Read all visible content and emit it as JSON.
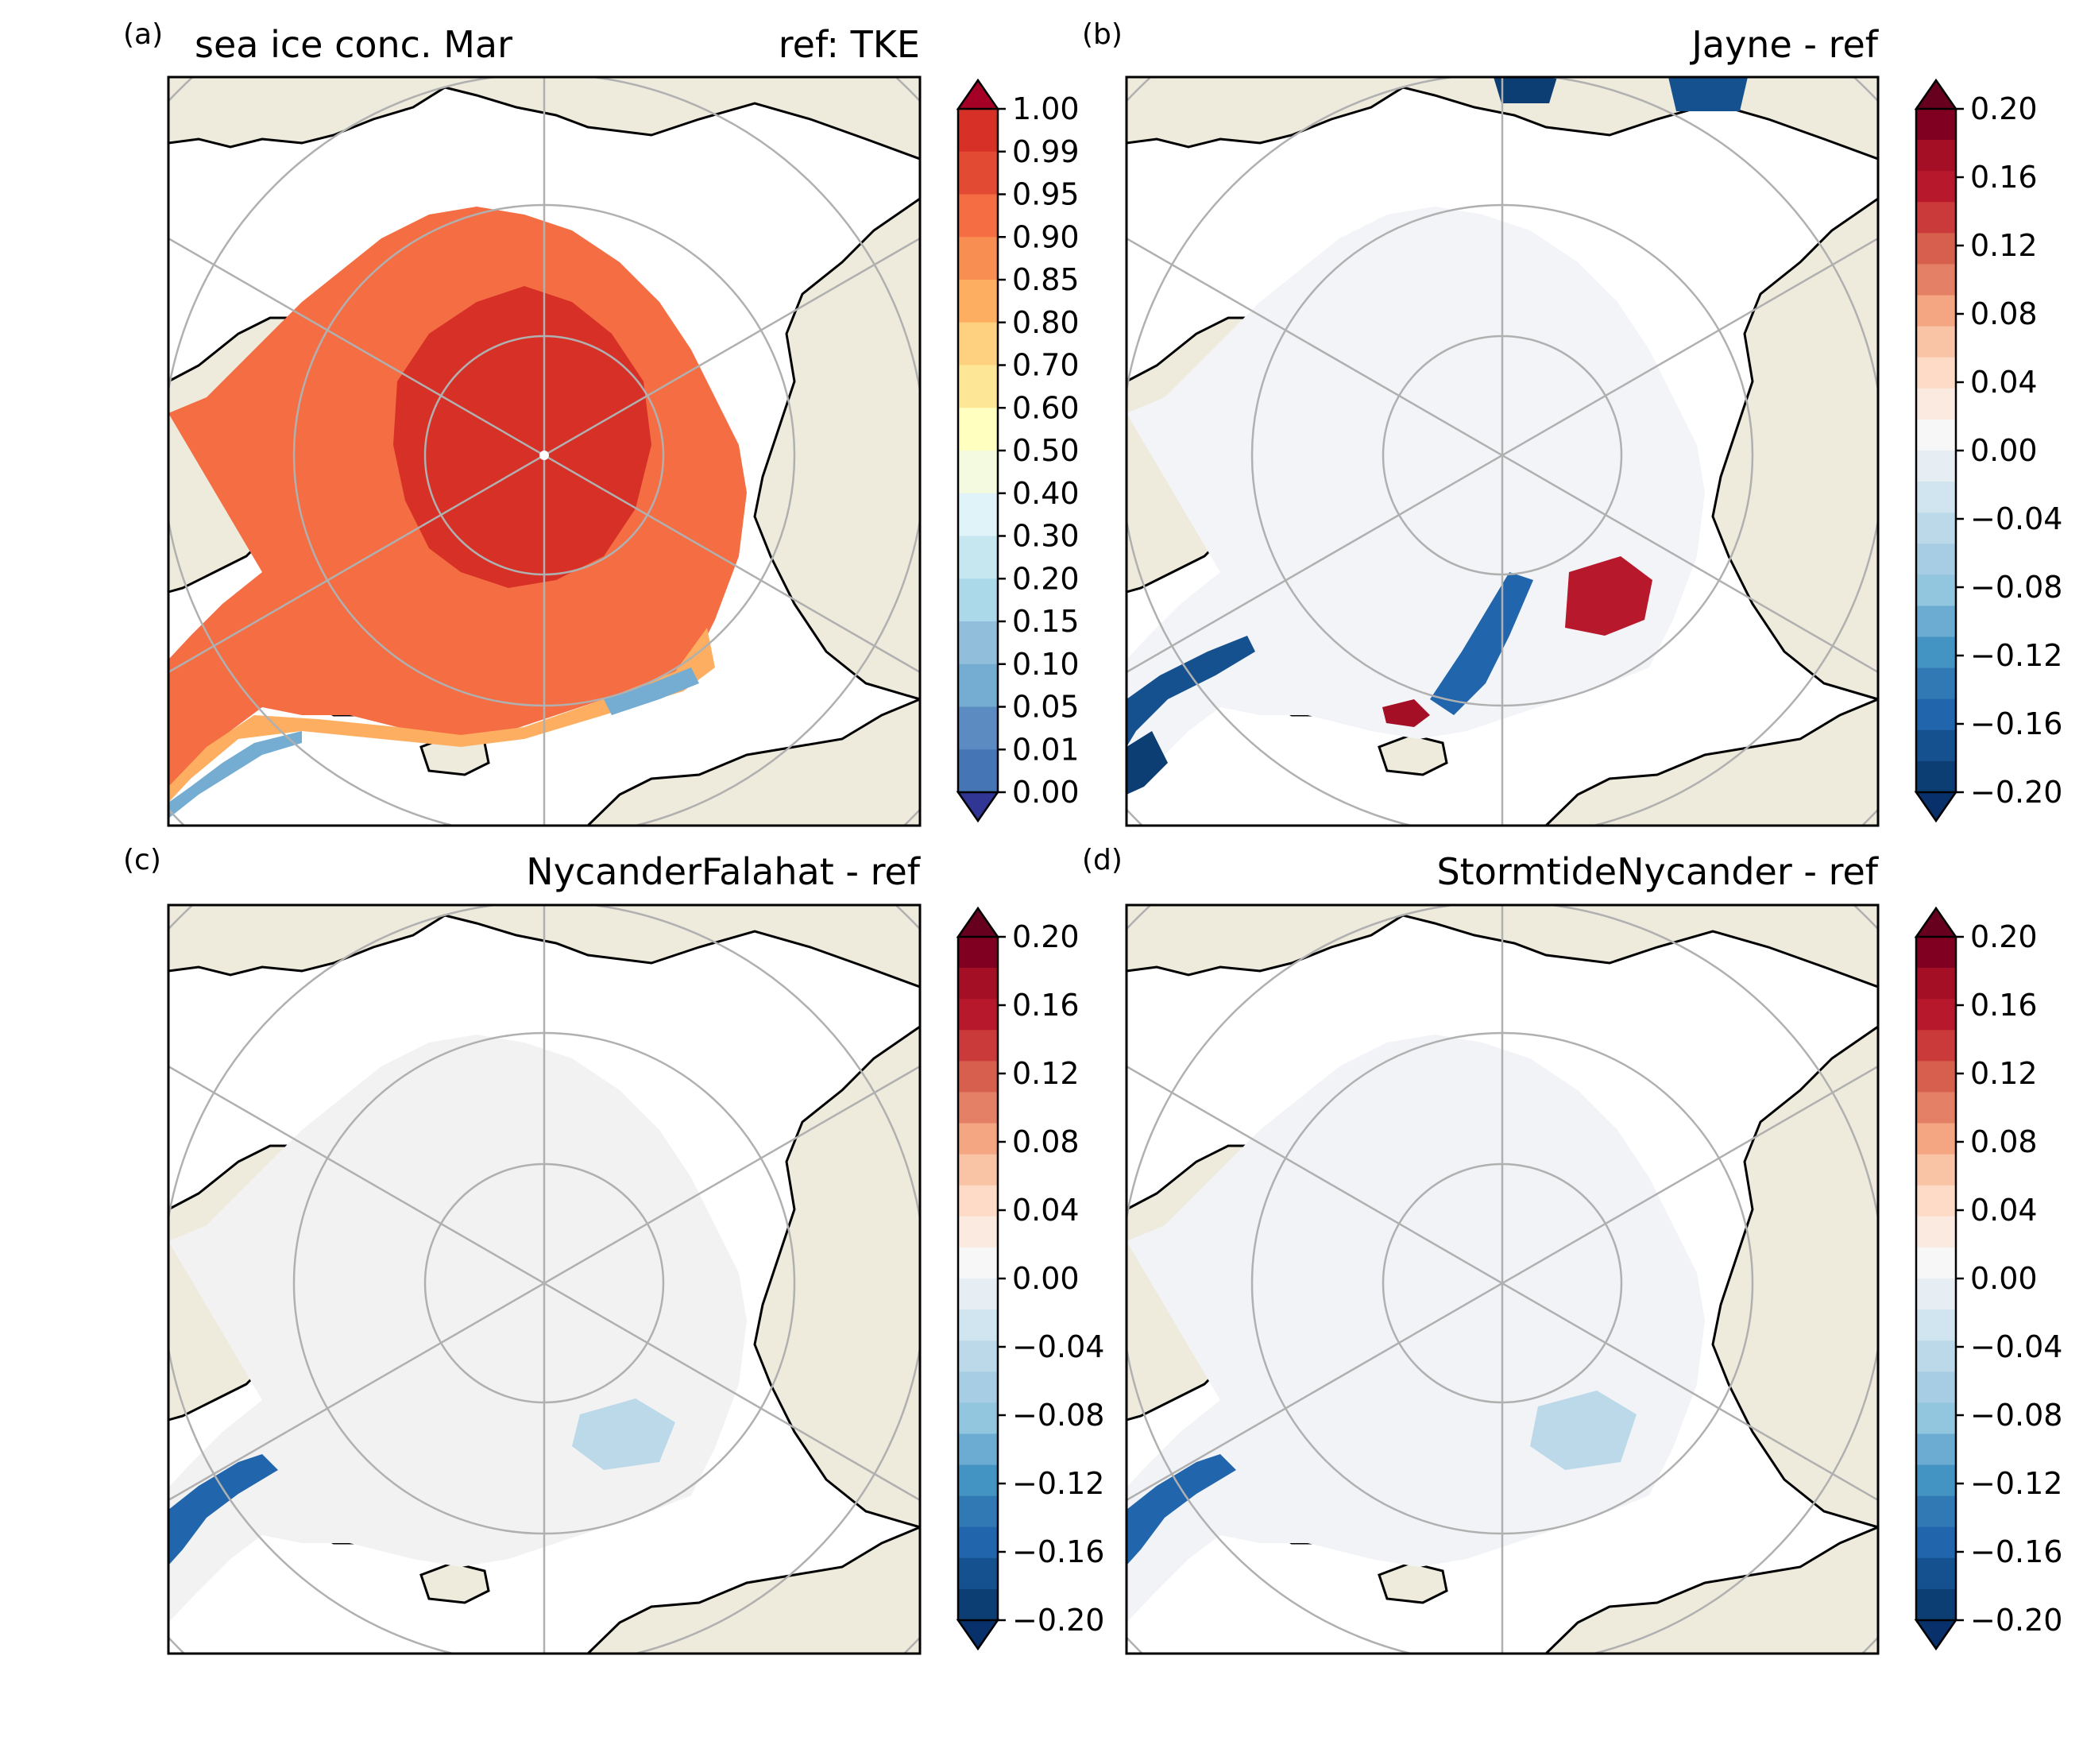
{
  "colors": {
    "land": "#eeeadc",
    "ocean_background": "#ffffff",
    "coastline": "#000000",
    "gridline": "#b0b0b0"
  },
  "colorbars": {
    "concentration": {
      "ticks": [
        "0.00",
        "0.01",
        "0.05",
        "0.10",
        "0.15",
        "0.20",
        "0.30",
        "0.40",
        "0.50",
        "0.60",
        "0.70",
        "0.80",
        "0.85",
        "0.90",
        "0.95",
        "0.99",
        "1.00"
      ],
      "under_color": "#313695",
      "over_color": "#a50026",
      "band_colors": [
        "#4575b4",
        "#5b8bc0",
        "#74add1",
        "#91bfdb",
        "#abd9e9",
        "#c7e7f0",
        "#e0f3f8",
        "#f3fadf",
        "#ffffbf",
        "#fee697",
        "#fdd17f",
        "#fdae61",
        "#f98e52",
        "#f46d43",
        "#e34a33",
        "#d73027"
      ]
    },
    "difference": {
      "ticks": [
        "0.20",
        "0.16",
        "0.12",
        "0.08",
        "0.04",
        "0.00",
        "−0.04",
        "−0.08",
        "−0.12",
        "−0.16",
        "−0.20"
      ],
      "under_color": "#08306b",
      "over_color": "#67001f",
      "band_colors_top_to_bottom": [
        "#7f0020",
        "#a50f26",
        "#b8182b",
        "#cb3a3a",
        "#d6604d",
        "#e48066",
        "#f4a582",
        "#f9c3a6",
        "#fddbc7",
        "#fbeae0",
        "#f7f7f7",
        "#e6eef4",
        "#d1e5f0",
        "#bcd9ea",
        "#a6cde3",
        "#92c5de",
        "#6cabd2",
        "#4393c3",
        "#3079b5",
        "#2166ac",
        "#15508f",
        "#0c3d73"
      ]
    }
  },
  "panels": [
    {
      "letter": "(a)",
      "title_left": "sea ice conc. Mar",
      "title_right": "ref: TKE",
      "colorbar": "concentration"
    },
    {
      "letter": "(b)",
      "title_left": "",
      "title_right": "Jayne - ref",
      "colorbar": "difference"
    },
    {
      "letter": "(c)",
      "title_left": "",
      "title_right": "NycanderFalahat - ref",
      "colorbar": "difference"
    },
    {
      "letter": "(d)",
      "title_left": "",
      "title_right": "StormtideNycander - ref",
      "colorbar": "difference"
    }
  ]
}
